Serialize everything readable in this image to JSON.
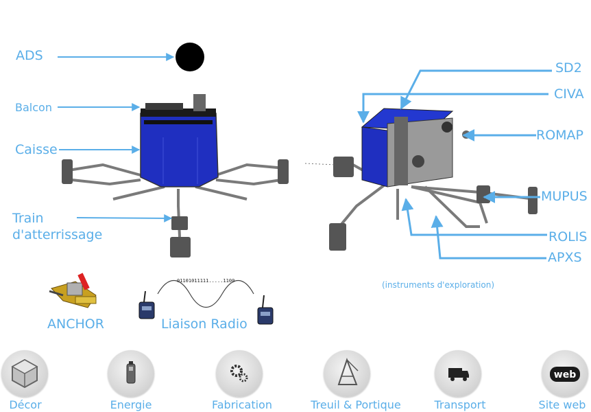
{
  "diagram": {
    "left_labels": {
      "ads": "ADS",
      "balcon": "Balcon",
      "caisse": "Caisse",
      "train_line1": "Train",
      "train_line2": "d'atterrissage"
    },
    "right_labels": {
      "sd2": "SD2",
      "civa": "CIVA",
      "romap": "ROMAP",
      "mupus": "MUPUS",
      "rolis": "ROLIS",
      "apxs": "APXS"
    },
    "caption": "(instruments d'exploration)",
    "anchor_label": "ANCHOR",
    "radio_label": "Liaison Radio",
    "binary_text": "01101011111.....1100",
    "colors": {
      "label_blue": "#5aaee8",
      "arrow_blue": "#5aaee8",
      "panel_blue": "#1f2fc0",
      "structure_grey": "#8a8a8a"
    }
  },
  "nav": [
    {
      "label": "Décor",
      "icon": "cube-icon"
    },
    {
      "label": "Energie",
      "icon": "battery-icon"
    },
    {
      "label": "Fabrication",
      "icon": "gears-icon"
    },
    {
      "label": "Treuil & Portique",
      "icon": "crane-icon"
    },
    {
      "label": "Transport",
      "icon": "truck-icon"
    },
    {
      "label": "Site web",
      "icon": "web-icon"
    }
  ]
}
